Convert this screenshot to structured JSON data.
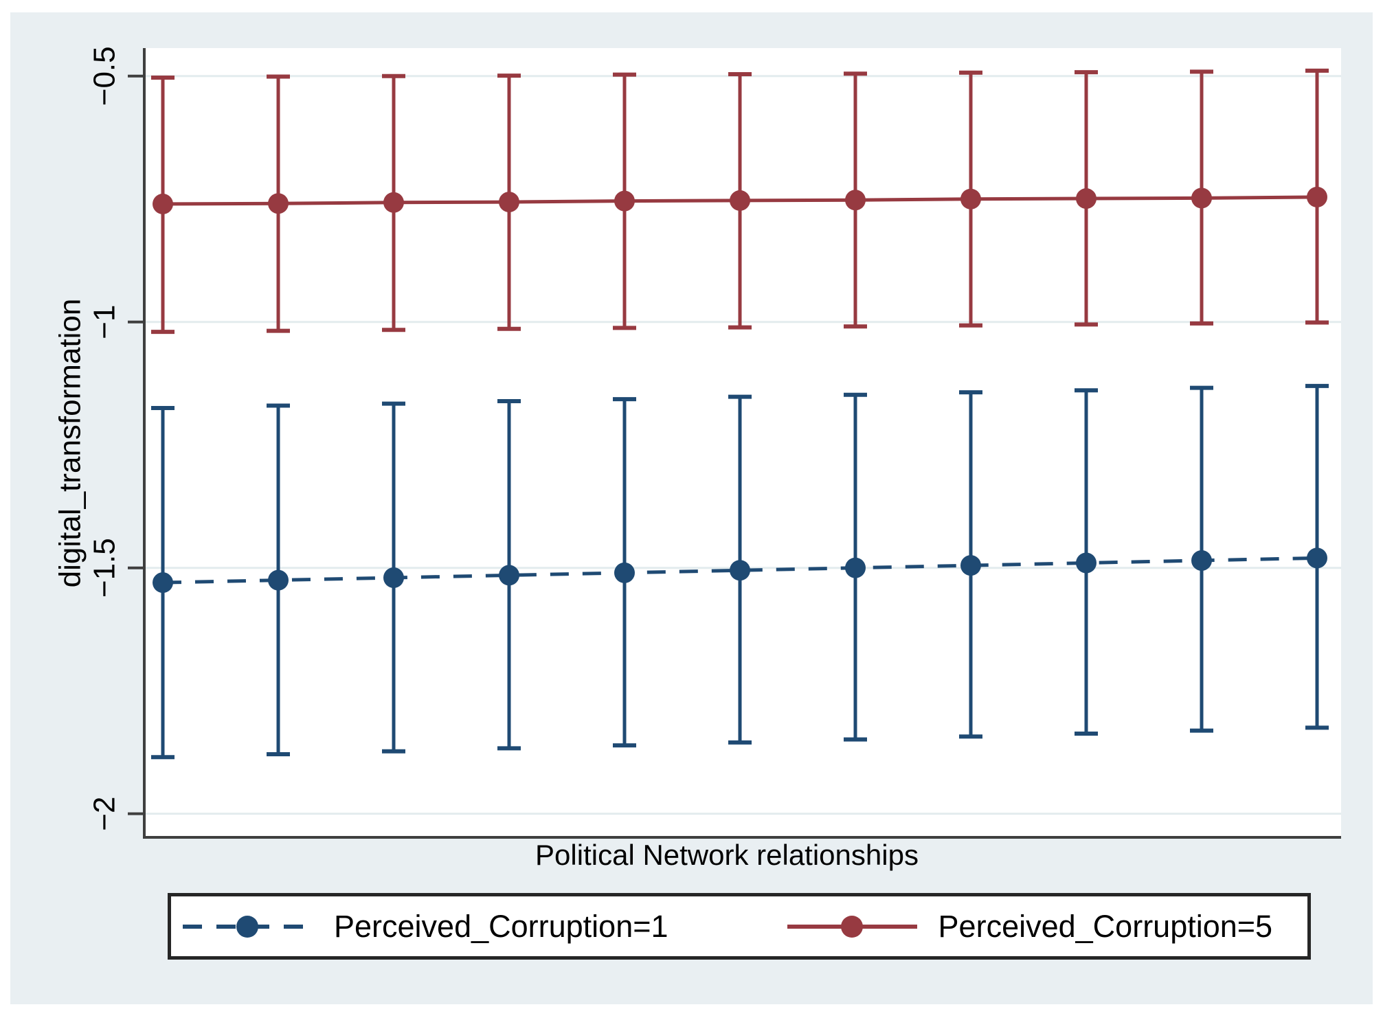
{
  "figure": {
    "background": "#e9eff2",
    "plot_background": "#ffffff",
    "axis_color": "#3f3f3f",
    "grid_color": "#e3ecee"
  },
  "chart_data": {
    "type": "line",
    "title": "",
    "xlabel": "Political Network relationships",
    "ylabel": "digital_transformation",
    "x": [
      1,
      2,
      3,
      4,
      5,
      6,
      7,
      8,
      9,
      10,
      11
    ],
    "ylim": [
      -2.048,
      -0.443
    ],
    "grid": true,
    "legend_position": "bottom",
    "error_bars": true,
    "yticks": [
      {
        "value": -0.5,
        "label": "−0.5"
      },
      {
        "value": -1.0,
        "label": "−1"
      },
      {
        "value": -1.5,
        "label": "−1.5"
      },
      {
        "value": -2.0,
        "label": "−2"
      }
    ],
    "series": [
      {
        "name": "Perceived_Corruption=1",
        "color": "#1f4a73",
        "line_style": "dashed",
        "marker": "circle",
        "values": [
          -1.53,
          -1.525,
          -1.52,
          -1.515,
          -1.51,
          -1.505,
          -1.5,
          -1.495,
          -1.49,
          -1.485,
          -1.48
        ],
        "ci_high": [
          -1.175,
          -1.17,
          -1.166,
          -1.161,
          -1.157,
          -1.152,
          -1.148,
          -1.143,
          -1.139,
          -1.134,
          -1.13
        ],
        "ci_low": [
          -1.885,
          -1.879,
          -1.873,
          -1.867,
          -1.861,
          -1.855,
          -1.849,
          -1.843,
          -1.837,
          -1.831,
          -1.825
        ]
      },
      {
        "name": "Perceived_Corruption=5",
        "color": "#973a41",
        "line_style": "solid",
        "marker": "circle",
        "values": [
          -0.76,
          -0.759,
          -0.757,
          -0.756,
          -0.754,
          -0.753,
          -0.752,
          -0.75,
          -0.749,
          -0.748,
          -0.746
        ],
        "ci_high": [
          -0.503,
          -0.501,
          -0.5,
          -0.499,
          -0.497,
          -0.496,
          -0.495,
          -0.493,
          -0.492,
          -0.491,
          -0.489
        ],
        "ci_low": [
          -1.02,
          -1.018,
          -1.016,
          -1.014,
          -1.012,
          -1.011,
          -1.009,
          -1.007,
          -1.005,
          -1.003,
          -1.001
        ]
      }
    ]
  }
}
